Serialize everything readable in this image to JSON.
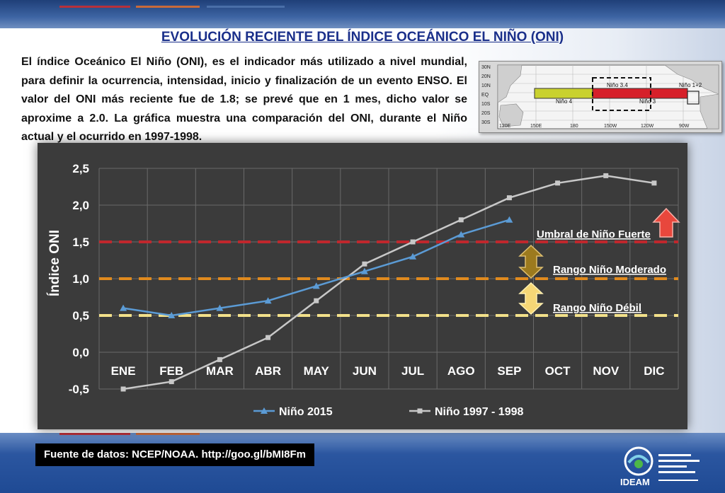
{
  "title": "EVOLUCIÓN RECIENTE DEL ÍNDICE OCEÁNICO EL NIÑO (ONI)",
  "intro": "El índice Oceánico El Niño (ONI), es el indicador más utilizado a nivel mundial, para definir la ocurrencia, intensidad, inicio y finalización de un evento ENSO. El valor del ONI más reciente fue de 1.8; se prevé que en 1 mes, dicho valor se aproxime a 2.0. La gráfica muestra una comparación del ONI, durante el Niño actual y el ocurrido en 1997-1998.",
  "map": {
    "lat_labels": [
      "30N",
      "20N",
      "10N",
      "EQ",
      "10S",
      "20S",
      "30S"
    ],
    "lon_labels": [
      "120E",
      "150E",
      "180",
      "150W",
      "120W",
      "90W"
    ],
    "region_labels": [
      "Niño 3.4",
      "Niño 1+2",
      "Niño 4",
      "Niño 3"
    ]
  },
  "source": "Fuente de datos: NCEP/NOAA. http://goo.gl/bMI8Fm",
  "logo_text": "IDEAM",
  "colors": {
    "chart_bg": "#3b3b3b",
    "series_2015": "#5b9bd5",
    "series_1997": "#c8c8c8",
    "strong": "#c0272d",
    "moderate": "#e08a1e",
    "weak": "#f2e08a"
  },
  "chart_data": {
    "type": "line",
    "ylabel": "Índice ONI",
    "ylim": [
      -0.5,
      2.5
    ],
    "ytick_labels": [
      "2,5",
      "2,0",
      "1,5",
      "1,0",
      "0,5",
      "0,0",
      "-0,5"
    ],
    "yticks": [
      2.5,
      2.0,
      1.5,
      1.0,
      0.5,
      0.0,
      -0.5
    ],
    "categories": [
      "ENE",
      "FEB",
      "MAR",
      "ABR",
      "MAY",
      "JUN",
      "JUL",
      "AGO",
      "SEP",
      "OCT",
      "NOV",
      "DIC"
    ],
    "grid": true,
    "legend_position": "bottom",
    "series": [
      {
        "name": "Niño 2015",
        "marker": "triangle",
        "values": [
          0.6,
          0.5,
          0.6,
          0.7,
          0.9,
          1.1,
          1.3,
          1.6,
          1.8,
          null,
          null,
          null
        ]
      },
      {
        "name": "Niño 1997 - 1998",
        "marker": "square",
        "values": [
          -0.5,
          -0.4,
          -0.1,
          0.2,
          0.7,
          1.2,
          1.5,
          1.8,
          2.1,
          2.3,
          2.4,
          2.3
        ]
      }
    ],
    "thresholds": [
      {
        "label": "Umbral de Niño Fuerte",
        "value": 1.5
      },
      {
        "label": "Rango Niño Moderado",
        "value": 1.0
      },
      {
        "label": "Rango Niño Débil",
        "value": 0.5
      }
    ]
  }
}
